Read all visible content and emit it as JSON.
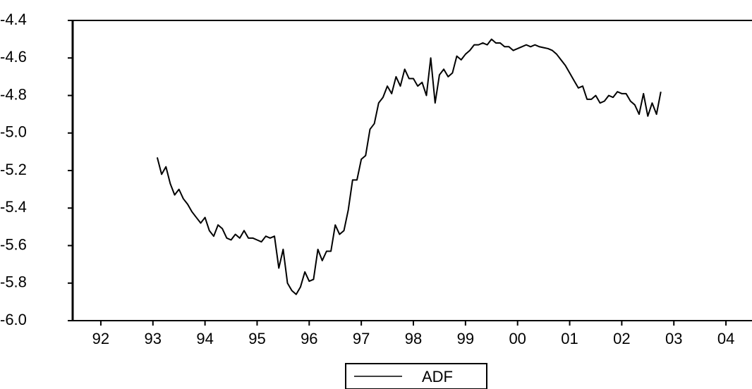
{
  "chart_data": {
    "type": "line",
    "x": [
      1993.583,
      1993.667,
      1993.75,
      1993.833,
      1993.917,
      1994,
      1994.083,
      1994.167,
      1994.25,
      1994.333,
      1994.417,
      1994.5,
      1994.583,
      1994.667,
      1994.75,
      1994.833,
      1994.917,
      1995,
      1995.083,
      1995.167,
      1995.25,
      1995.333,
      1995.417,
      1995.5,
      1995.583,
      1995.667,
      1995.75,
      1995.833,
      1995.917,
      1996,
      1996.083,
      1996.167,
      1996.25,
      1996.333,
      1996.417,
      1996.5,
      1996.583,
      1996.667,
      1996.75,
      1996.833,
      1996.917,
      1997,
      1997.083,
      1997.167,
      1997.25,
      1997.333,
      1997.417,
      1997.5,
      1997.583,
      1997.667,
      1997.75,
      1997.833,
      1997.917,
      1998,
      1998.083,
      1998.167,
      1998.25,
      1998.333,
      1998.417,
      1998.5,
      1998.583,
      1998.667,
      1998.75,
      1998.833,
      1998.917,
      1999,
      1999.083,
      1999.167,
      1999.25,
      1999.333,
      1999.417,
      1999.5,
      1999.583,
      1999.667,
      1999.75,
      1999.833,
      1999.917,
      2000,
      2000.083,
      2000.167,
      2000.25,
      2000.333,
      2000.417,
      2000.5,
      2000.583,
      2000.667,
      2000.75,
      2000.833,
      2000.917,
      2001,
      2001.083,
      2001.167,
      2001.25,
      2001.333,
      2001.417,
      2001.5,
      2001.583,
      2001.667,
      2001.75,
      2001.833,
      2001.917,
      2002,
      2002.083,
      2002.167,
      2002.25,
      2002.333,
      2002.417,
      2002.5,
      2002.583,
      2002.667,
      2002.75,
      2002.833,
      2002.917,
      2003,
      2003.083,
      2003.167,
      2003.25
    ],
    "series": [
      {
        "name": "ADF",
        "color": "#000000",
        "values": [
          -5.13,
          -5.22,
          -5.18,
          -5.27,
          -5.33,
          -5.3,
          -5.35,
          -5.38,
          -5.42,
          -5.45,
          -5.48,
          -5.45,
          -5.52,
          -5.55,
          -5.49,
          -5.51,
          -5.56,
          -5.57,
          -5.54,
          -5.56,
          -5.52,
          -5.56,
          -5.56,
          -5.57,
          -5.58,
          -5.55,
          -5.56,
          -5.55,
          -5.72,
          -5.62,
          -5.8,
          -5.84,
          -5.86,
          -5.82,
          -5.74,
          -5.79,
          -5.78,
          -5.62,
          -5.68,
          -5.63,
          -5.63,
          -5.49,
          -5.54,
          -5.52,
          -5.41,
          -5.25,
          -5.25,
          -5.14,
          -5.12,
          -4.98,
          -4.95,
          -4.84,
          -4.81,
          -4.75,
          -4.79,
          -4.7,
          -4.75,
          -4.66,
          -4.71,
          -4.71,
          -4.75,
          -4.73,
          -4.8,
          -4.6,
          -4.84,
          -4.69,
          -4.66,
          -4.7,
          -4.68,
          -4.59,
          -4.61,
          -4.58,
          -4.56,
          -4.53,
          -4.53,
          -4.52,
          -4.53,
          -4.5,
          -4.52,
          -4.52,
          -4.54,
          -4.54,
          -4.56,
          -4.55,
          -4.54,
          -4.53,
          -4.54,
          -4.53,
          -4.54,
          -4.545,
          -4.55,
          -4.56,
          -4.58,
          -4.61,
          -4.64,
          -4.68,
          -4.72,
          -4.76,
          -4.75,
          -4.82,
          -4.82,
          -4.8,
          -4.84,
          -4.83,
          -4.8,
          -4.81,
          -4.78,
          -4.79,
          -4.79,
          -4.83,
          -4.85,
          -4.9,
          -4.79,
          -4.91,
          -4.84,
          -4.9,
          -4.78
        ]
      }
    ],
    "xlim": [
      1992,
      2005
    ],
    "xticks": [
      {
        "value": 1992.5,
        "label": "92"
      },
      {
        "value": 1993.5,
        "label": "93"
      },
      {
        "value": 1994.5,
        "label": "94"
      },
      {
        "value": 1995.5,
        "label": "95"
      },
      {
        "value": 1996.5,
        "label": "96"
      },
      {
        "value": 1997.5,
        "label": "97"
      },
      {
        "value": 1998.5,
        "label": "98"
      },
      {
        "value": 1999.5,
        "label": "99"
      },
      {
        "value": 2000.5,
        "label": "00"
      },
      {
        "value": 2001.5,
        "label": "01"
      },
      {
        "value": 2002.5,
        "label": "02"
      },
      {
        "value": 2003.5,
        "label": "03"
      },
      {
        "value": 2004.5,
        "label": "04"
      }
    ],
    "ylim": [
      -6.0,
      -4.4
    ],
    "yticks": [
      {
        "value": -6,
        "label": "-6.0"
      },
      -5.8,
      -5.6,
      -5.4,
      -5.2,
      {
        "value": -5,
        "label": "-5.0"
      },
      -4.8,
      -4.6,
      -4.4
    ],
    "legend": "bottom"
  }
}
